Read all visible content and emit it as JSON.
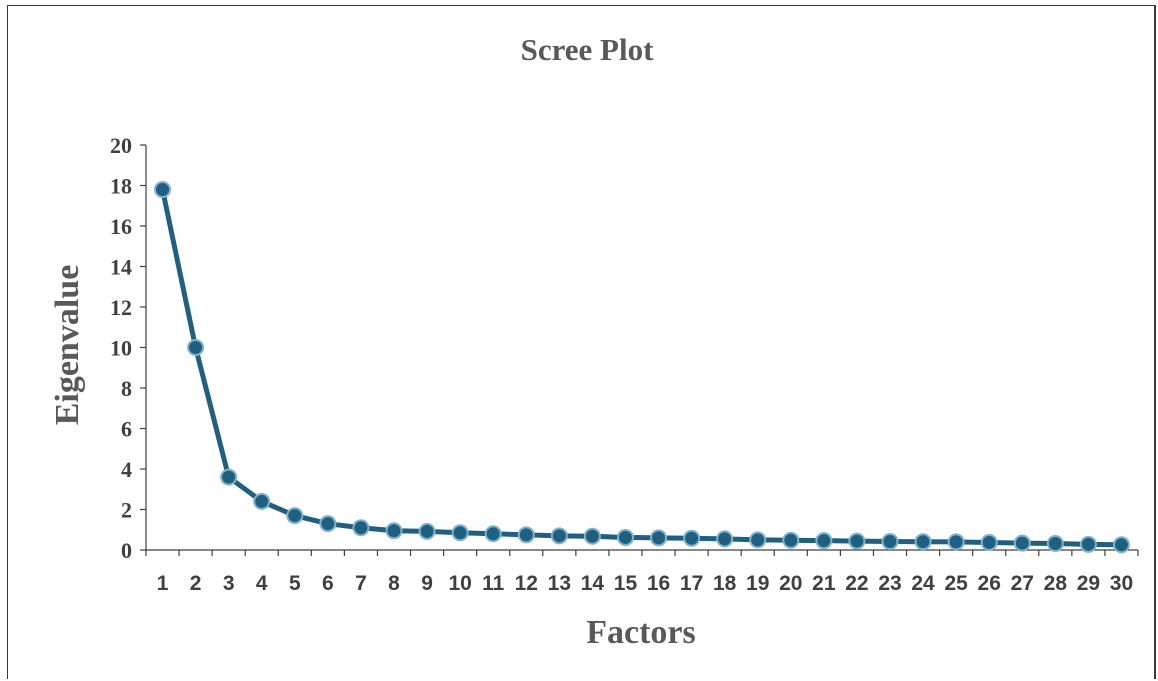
{
  "chart_data": {
    "type": "line",
    "title": "Scree Plot",
    "xlabel": "Factors",
    "ylabel": "Eigenvalue",
    "ylim": [
      0,
      20
    ],
    "yticks": [
      0,
      2,
      4,
      6,
      8,
      10,
      12,
      14,
      16,
      18,
      20
    ],
    "categories": [
      "1",
      "2",
      "3",
      "4",
      "5",
      "6",
      "7",
      "8",
      "9",
      "10",
      "11",
      "12",
      "13",
      "14",
      "15",
      "16",
      "17",
      "18",
      "19",
      "20",
      "21",
      "22",
      "23",
      "24",
      "25",
      "26",
      "27",
      "28",
      "29",
      "30"
    ],
    "series": [
      {
        "values": [
          17.8,
          10.0,
          3.6,
          2.4,
          1.7,
          1.3,
          1.1,
          0.95,
          0.92,
          0.85,
          0.8,
          0.75,
          0.7,
          0.68,
          0.62,
          0.6,
          0.58,
          0.55,
          0.5,
          0.48,
          0.46,
          0.44,
          0.42,
          0.41,
          0.4,
          0.37,
          0.34,
          0.32,
          0.28,
          0.26
        ],
        "color": "#1f5f7f"
      }
    ],
    "grid": false,
    "legend": "none"
  }
}
